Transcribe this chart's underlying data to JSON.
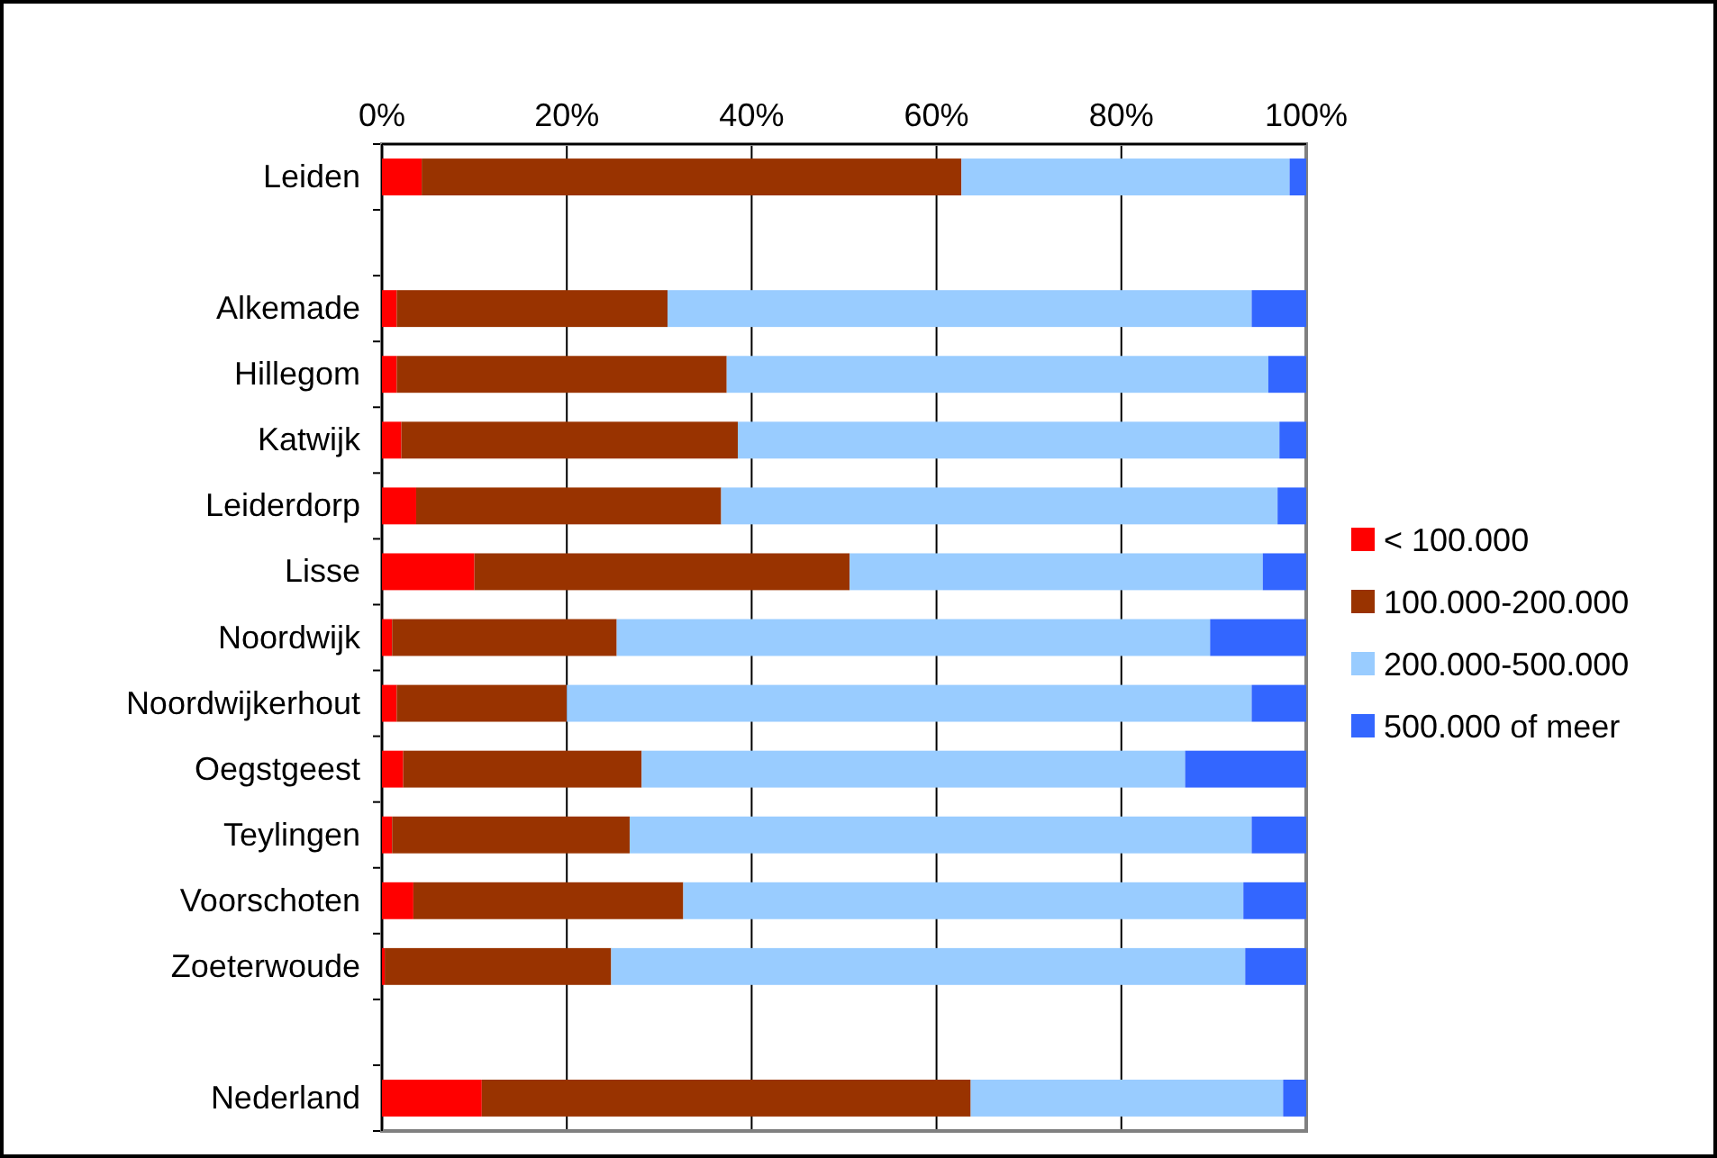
{
  "chart_data": {
    "type": "bar",
    "orientation": "horizontal",
    "stacked": true,
    "categories": [
      "Leiden",
      null,
      "Alkemade",
      "Hillegom",
      "Katwijk",
      "Leiderdorp",
      "Lisse",
      "Noordwijk",
      "Noordwijkerhout",
      "Oegstgeest",
      "Teylingen",
      "Voorschoten",
      "Zoeterwoude",
      null,
      "Nederland"
    ],
    "series": [
      {
        "name": "< 100.000",
        "color": "#ff0000",
        "values": [
          4.3,
          null,
          1.6,
          1.6,
          2.1,
          3.7,
          10.0,
          1.1,
          1.6,
          2.3,
          1.1,
          3.4,
          0.3,
          null,
          10.8
        ]
      },
      {
        "name": "100.000-200.000",
        "color": "#993300",
        "values": [
          58.4,
          null,
          29.3,
          35.7,
          36.4,
          33.0,
          40.6,
          24.3,
          18.4,
          25.8,
          25.7,
          29.2,
          24.5,
          null,
          52.9
        ]
      },
      {
        "name": "200.000-500.000",
        "color": "#99ccff",
        "values": [
          35.5,
          null,
          63.2,
          58.6,
          58.6,
          60.2,
          44.7,
          64.2,
          74.1,
          58.8,
          67.3,
          60.6,
          68.6,
          null,
          33.8
        ]
      },
      {
        "name": "500.000 of meer",
        "color": "#3366ff",
        "values": [
          1.8,
          null,
          5.9,
          4.1,
          2.9,
          3.1,
          4.7,
          10.4,
          5.9,
          13.1,
          5.9,
          6.8,
          6.6,
          null,
          2.5
        ]
      }
    ],
    "xlim": [
      0,
      100
    ],
    "xticks": [
      {
        "value": 0,
        "label": "0%"
      },
      {
        "value": 20,
        "label": "20%"
      },
      {
        "value": 40,
        "label": "40%"
      },
      {
        "value": 60,
        "label": "60%"
      },
      {
        "value": 80,
        "label": "80%"
      },
      {
        "value": 100,
        "label": "100%"
      }
    ],
    "grid": "x",
    "legend": "right"
  }
}
